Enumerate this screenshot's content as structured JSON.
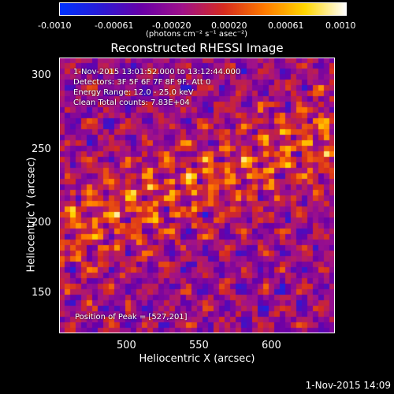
{
  "colorbar": {
    "ticks": [
      "-0.0010",
      "-0.00061",
      "-0.00020",
      "0.00020",
      "0.00061",
      "0.0010"
    ],
    "unit_label": "(photons cm⁻² s⁻¹ asec⁻²)",
    "range": [
      -0.001,
      0.001
    ],
    "colors": [
      "#0033ff",
      "#2b1bd6",
      "#6a00a8",
      "#a0128a",
      "#d62b20",
      "#ff7a00",
      "#ffd700",
      "#ffffff"
    ]
  },
  "title": "Reconstructed RHESSI Image",
  "overlay": {
    "line1": "1-Nov-2015 13:01:52.000 to 13:12:44.000",
    "line2": "Detectors: 3F 5F 6F 7F 8F 9F, Att 0",
    "line3": "Energy Range: 12.0 - 25.0 keV",
    "line4": "Clean     Total counts: 7.83E+04",
    "peak": "Position of Peak = [527,201]"
  },
  "axes": {
    "xlabel": "Heliocentric X (arcsec)",
    "ylabel": "Heliocentric Y (arcsec)",
    "xticks": [
      "500",
      "550",
      "600"
    ],
    "yticks": [
      "300",
      "250",
      "200",
      "150"
    ],
    "xlim": [
      452,
      640
    ],
    "ylim": [
      120,
      310
    ]
  },
  "footer_timestamp": "1-Nov-2015 14:09"
}
